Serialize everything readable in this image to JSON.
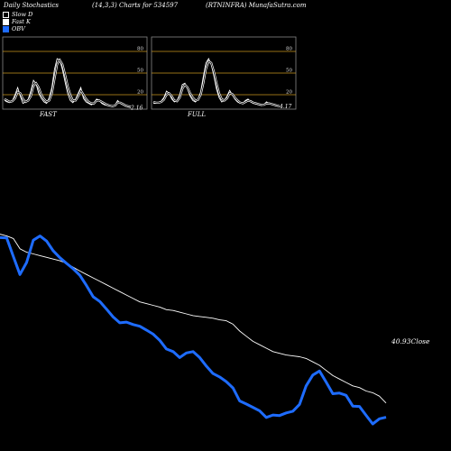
{
  "header": {
    "title_left": "Daily Stochastics",
    "title_mid": "(14,3,3) Charts for 534597",
    "title_right": "(RTNINFRA) MunafaSutra.com"
  },
  "legend": [
    {
      "label": "Slow D",
      "color": "#000000"
    },
    {
      "label": "Fast K",
      "color": "#ffffff"
    },
    {
      "label": "OBV",
      "color": "#1e6cff"
    }
  ],
  "panels": {
    "fast": {
      "title": "FAST",
      "last_value": "2.16",
      "ticks": [
        "80",
        "50",
        "20"
      ]
    },
    "full": {
      "title": "FULL",
      "last_value": "4.17",
      "ticks": [
        "80",
        "50",
        "20"
      ]
    }
  },
  "close_label": "40.93Close",
  "colors": {
    "obv": "#1e6cff",
    "price": "#ffffff",
    "level": "#c8961e",
    "panel_border": "#888888"
  },
  "chart_data": [
    {
      "type": "line",
      "name": "stochastic-fast",
      "ylim": [
        0,
        100
      ],
      "levels": [
        80,
        50,
        20
      ],
      "series": [
        {
          "name": "Fast K",
          "values": [
            12,
            10,
            9,
            12,
            20,
            30,
            18,
            8,
            10,
            14,
            25,
            40,
            35,
            22,
            15,
            10,
            8,
            16,
            30,
            55,
            70,
            68,
            55,
            38,
            22,
            12,
            9,
            14,
            22,
            30,
            15,
            10,
            8,
            6,
            9,
            14,
            12,
            8,
            6,
            5,
            4,
            4,
            5,
            12,
            8,
            6,
            4,
            3,
            2
          ]
        },
        {
          "name": "Slow D",
          "values": [
            14,
            12,
            10,
            11,
            15,
            24,
            22,
            14,
            10,
            12,
            18,
            32,
            36,
            30,
            20,
            14,
            10,
            12,
            22,
            42,
            62,
            68,
            62,
            48,
            32,
            20,
            12,
            12,
            18,
            26,
            20,
            14,
            10,
            8,
            8,
            12,
            12,
            10,
            8,
            6,
            5,
            4,
            5,
            9,
            9,
            7,
            5,
            4,
            3
          ]
        }
      ]
    },
    {
      "type": "line",
      "name": "stochastic-full",
      "ylim": [
        0,
        100
      ],
      "levels": [
        80,
        50,
        20
      ],
      "series": [
        {
          "name": "Fast K",
          "values": [
            8,
            8,
            9,
            11,
            16,
            25,
            22,
            14,
            10,
            12,
            20,
            34,
            36,
            28,
            18,
            12,
            10,
            14,
            24,
            45,
            64,
            70,
            62,
            46,
            28,
            16,
            10,
            12,
            18,
            26,
            20,
            14,
            10,
            8,
            8,
            12,
            14,
            10,
            8,
            7,
            6,
            5,
            6,
            10,
            8,
            7,
            5,
            4,
            4
          ]
        },
        {
          "name": "Slow D",
          "values": [
            10,
            9,
            9,
            10,
            13,
            20,
            22,
            18,
            12,
            11,
            16,
            28,
            34,
            30,
            22,
            16,
            12,
            13,
            20,
            36,
            56,
            66,
            64,
            52,
            36,
            22,
            14,
            12,
            15,
            22,
            21,
            16,
            12,
            9,
            8,
            10,
            12,
            11,
            9,
            8,
            7,
            6,
            6,
            8,
            8,
            7,
            6,
            5,
            4
          ]
        }
      ]
    },
    {
      "type": "line",
      "name": "price-obv",
      "series": [
        {
          "name": "OBV",
          "values": [
            0.245,
            0.243,
            0.135,
            0.03,
            0.1,
            0.23,
            0.255,
            0.225,
            0.168,
            0.128,
            0.095,
            0.063,
            0.025,
            -0.035,
            -0.1,
            -0.128,
            -0.172,
            -0.218,
            -0.252,
            -0.248,
            -0.262,
            -0.272,
            -0.294,
            -0.318,
            -0.354,
            -0.405,
            -0.42,
            -0.455,
            -0.428,
            -0.42,
            -0.455,
            -0.505,
            -0.548,
            -0.568,
            -0.595,
            -0.632,
            -0.708,
            -0.726,
            -0.745,
            -0.765,
            -0.804,
            -0.79,
            -0.793,
            -0.778,
            -0.768,
            -0.728,
            -0.62,
            -0.557,
            -0.533,
            -0.598,
            -0.666,
            -0.662,
            -0.675,
            -0.738,
            -0.74,
            -0.792,
            -0.842,
            -0.812,
            -0.803
          ]
        },
        {
          "name": "Close",
          "values": [
            0.265,
            0.255,
            0.24,
            0.18,
            0.16,
            0.15,
            0.14,
            0.13,
            0.12,
            0.11,
            0.095,
            0.072,
            0.05,
            0.03,
            0.01,
            -0.01,
            -0.03,
            -0.05,
            -0.07,
            -0.09,
            -0.11,
            -0.13,
            -0.14,
            -0.15,
            -0.16,
            -0.175,
            -0.18,
            -0.19,
            -0.2,
            -0.21,
            -0.215,
            -0.22,
            -0.225,
            -0.235,
            -0.24,
            -0.26,
            -0.3,
            -0.33,
            -0.36,
            -0.38,
            -0.4,
            -0.42,
            -0.43,
            -0.44,
            -0.445,
            -0.45,
            -0.46,
            -0.48,
            -0.5,
            -0.53,
            -0.56,
            -0.58,
            -0.6,
            -0.62,
            -0.63,
            -0.65,
            -0.66,
            -0.68,
            -0.72
          ]
        }
      ]
    }
  ]
}
